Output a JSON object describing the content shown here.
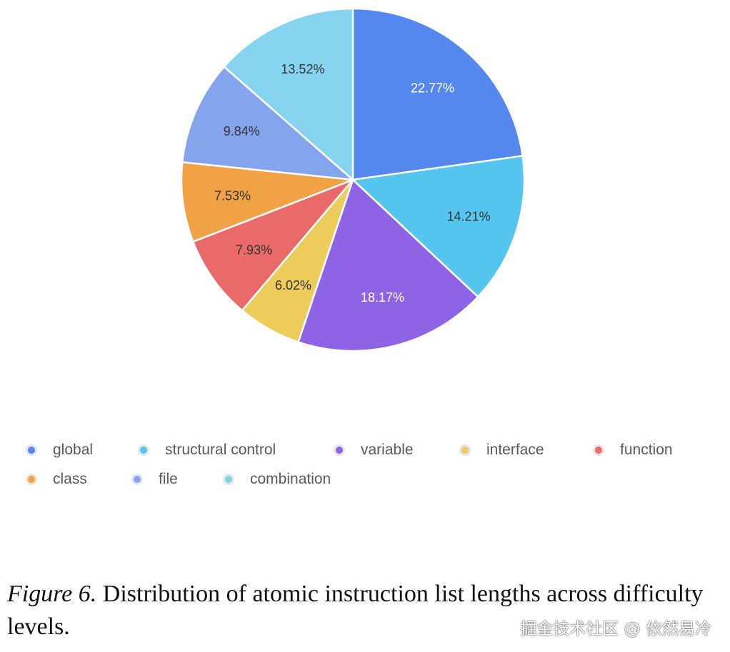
{
  "chart_data": {
    "type": "pie",
    "slices": [
      {
        "label": "global",
        "value": 22.77,
        "value_label": "22.77%",
        "color": "#5588ee",
        "label_color": "#ffffff"
      },
      {
        "label": "structural control",
        "value": 14.21,
        "value_label": "14.21%",
        "color": "#55c6f0",
        "label_color": "#333333"
      },
      {
        "label": "variable",
        "value": 18.17,
        "value_label": "18.17%",
        "color": "#8f63e6",
        "label_color": "#ffffff"
      },
      {
        "label": "interface",
        "value": 6.02,
        "value_label": "6.02%",
        "color": "#edcc5c",
        "label_color": "#333333"
      },
      {
        "label": "function",
        "value": 7.93,
        "value_label": "7.93%",
        "color": "#e96a69",
        "label_color": "#333333"
      },
      {
        "label": "class",
        "value": 7.53,
        "value_label": "7.53%",
        "color": "#f0a244",
        "label_color": "#333333"
      },
      {
        "label": "file",
        "value": 9.84,
        "value_label": "9.84%",
        "color": "#84a5ed",
        "label_color": "#333333"
      },
      {
        "label": "combination",
        "value": 13.52,
        "value_label": "13.52%",
        "color": "#84d4f0",
        "label_color": "#333333"
      }
    ],
    "start": "12 o'clock",
    "direction": "clockwise",
    "legend_position": "bottom",
    "slice_border_color": "#ffffff"
  },
  "caption": {
    "figure_label": "Figure 6.",
    "text": " Distribution of atomic instruction list lengths across difficulty levels."
  },
  "watermark": "掘金技术社区 @ 依然易冷"
}
